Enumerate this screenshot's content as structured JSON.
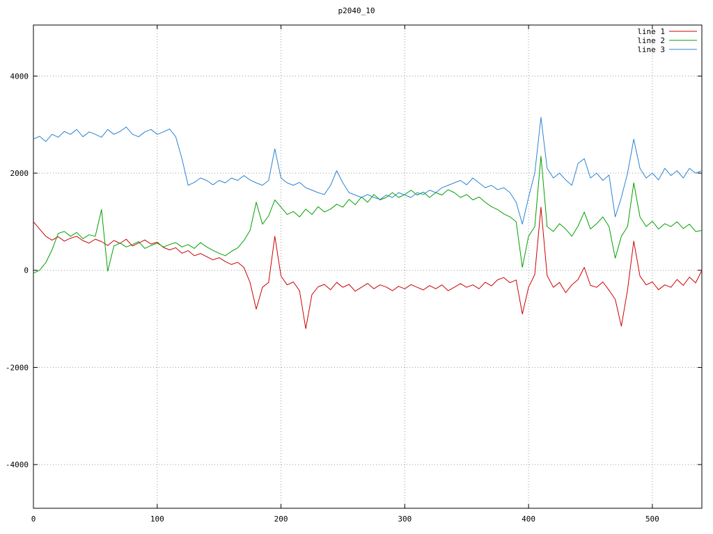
{
  "title": "p2040_10",
  "chart_data": {
    "type": "line",
    "title": "p2040_10",
    "x_start": 0,
    "x_step": 5,
    "xlim": [
      0,
      540
    ],
    "ylim": [
      -4900,
      5050
    ],
    "x_ticks": [
      0,
      100,
      200,
      300,
      400,
      500
    ],
    "y_ticks": [
      -4000,
      -2000,
      0,
      2000,
      4000
    ],
    "grid": true,
    "legend_position": "top-right",
    "background": "#ffffff",
    "series": [
      {
        "name": "line 1",
        "color": "#cc0000",
        "values": [
          1000,
          850,
          700,
          620,
          690,
          600,
          660,
          700,
          610,
          560,
          640,
          590,
          510,
          615,
          555,
          640,
          500,
          560,
          625,
          540,
          580,
          470,
          420,
          465,
          350,
          405,
          300,
          345,
          280,
          215,
          260,
          180,
          120,
          165,
          60,
          -250,
          -800,
          -350,
          -250,
          700,
          -120,
          -300,
          -240,
          -420,
          -1200,
          -500,
          -340,
          -290,
          -400,
          -250,
          -350,
          -290,
          -430,
          -350,
          -270,
          -380,
          -300,
          -345,
          -420,
          -330,
          -380,
          -295,
          -350,
          -405,
          -315,
          -380,
          -300,
          -420,
          -350,
          -275,
          -350,
          -300,
          -380,
          -245,
          -320,
          -195,
          -150,
          -255,
          -200,
          -900,
          -350,
          -90,
          1300,
          -110,
          -350,
          -250,
          -460,
          -300,
          -190,
          60,
          -310,
          -350,
          -240,
          -410,
          -600,
          -1150,
          -400,
          600,
          -120,
          -300,
          -240,
          -400,
          -300,
          -350,
          -190,
          -310,
          -140,
          -260,
          0
        ]
      },
      {
        "name": "line 2",
        "color": "#00a000",
        "values": [
          -60,
          0,
          160,
          420,
          760,
          800,
          700,
          780,
          650,
          730,
          700,
          1250,
          -20,
          500,
          560,
          480,
          530,
          590,
          450,
          510,
          560,
          480,
          530,
          570,
          480,
          530,
          450,
          570,
          480,
          410,
          350,
          300,
          390,
          460,
          610,
          820,
          1400,
          950,
          1120,
          1450,
          1300,
          1150,
          1210,
          1100,
          1260,
          1150,
          1310,
          1200,
          1260,
          1360,
          1300,
          1460,
          1350,
          1510,
          1400,
          1560,
          1450,
          1500,
          1600,
          1500,
          1560,
          1650,
          1550,
          1610,
          1500,
          1600,
          1550,
          1660,
          1600,
          1500,
          1560,
          1450,
          1510,
          1400,
          1310,
          1250,
          1160,
          1100,
          1000,
          60,
          700,
          900,
          2350,
          900,
          800,
          960,
          850,
          700,
          910,
          1200,
          850,
          960,
          1100,
          900,
          250,
          700,
          900,
          1800,
          1100,
          900,
          1010,
          850,
          960,
          900,
          1000,
          860,
          950,
          800,
          820
        ]
      },
      {
        "name": "line 3",
        "color": "#2b83d0",
        "values": [
          2700,
          2760,
          2650,
          2800,
          2740,
          2860,
          2800,
          2900,
          2750,
          2850,
          2800,
          2740,
          2900,
          2800,
          2860,
          2950,
          2800,
          2750,
          2850,
          2900,
          2800,
          2850,
          2910,
          2750,
          2300,
          1750,
          1810,
          1900,
          1850,
          1760,
          1850,
          1800,
          1900,
          1850,
          1950,
          1860,
          1800,
          1750,
          1850,
          2500,
          1900,
          1800,
          1750,
          1810,
          1700,
          1650,
          1600,
          1560,
          1750,
          2050,
          1800,
          1600,
          1550,
          1500,
          1560,
          1500,
          1460,
          1550,
          1500,
          1600,
          1550,
          1500,
          1600,
          1560,
          1650,
          1600,
          1700,
          1750,
          1800,
          1850,
          1760,
          1900,
          1800,
          1700,
          1750,
          1660,
          1700,
          1600,
          1400,
          950,
          1500,
          2000,
          3150,
          2100,
          1900,
          2000,
          1860,
          1750,
          2200,
          2300,
          1900,
          2000,
          1850,
          1960,
          1100,
          1500,
          2000,
          2700,
          2100,
          1900,
          2000,
          1860,
          2100,
          1950,
          2050,
          1900,
          2100,
          2000,
          2050
        ]
      }
    ]
  }
}
